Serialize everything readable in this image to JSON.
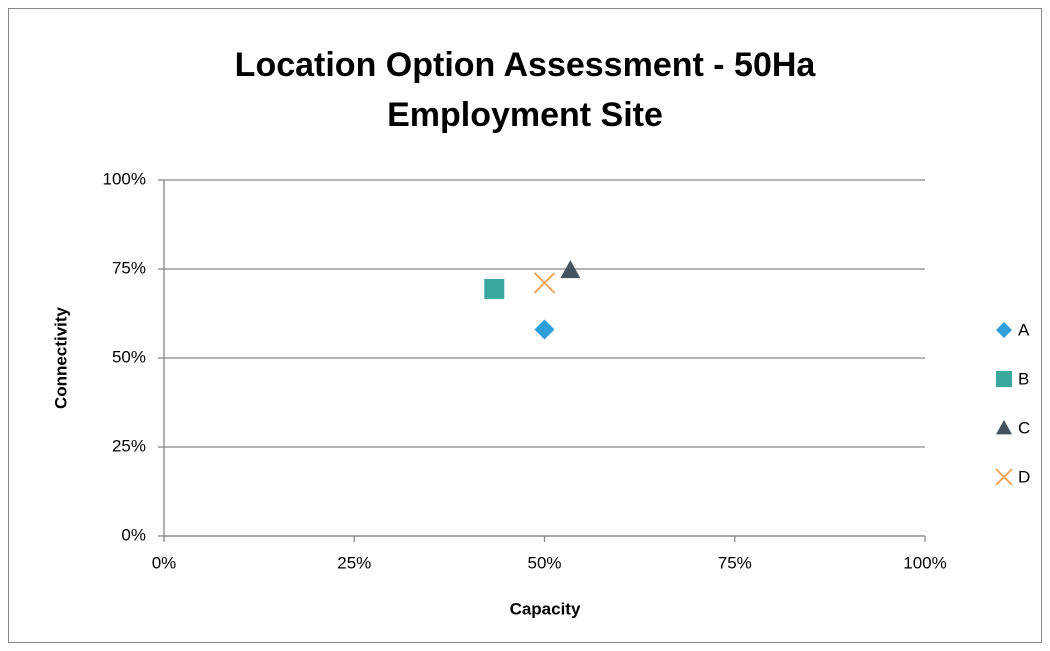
{
  "chart_data": {
    "type": "scatter",
    "title": "Location Option Assessment - 50Ha Employment Site",
    "x_label": "Capacity",
    "y_label": "Connectivity",
    "xlim": [
      0,
      100
    ],
    "ylim": [
      0,
      100
    ],
    "xticks": [
      {
        "value": 0,
        "label": "0%"
      },
      {
        "value": 25,
        "label": "25%"
      },
      {
        "value": 50,
        "label": "50%"
      },
      {
        "value": 75,
        "label": "75%"
      },
      {
        "value": 100,
        "label": "100%"
      }
    ],
    "yticks": [
      {
        "value": 0,
        "label": "0%"
      },
      {
        "value": 25,
        "label": "25%"
      },
      {
        "value": 50,
        "label": "50%"
      },
      {
        "value": 75,
        "label": "75%"
      },
      {
        "value": 100,
        "label": "100%"
      }
    ],
    "grid": true,
    "legend": "right",
    "series": [
      {
        "name": "A",
        "color": "#2e9fd8",
        "marker": "diamond",
        "x": [
          50
        ],
        "values": [
          58
        ]
      },
      {
        "name": "B",
        "color": "#3aa89c",
        "marker": "square",
        "x": [
          43.4
        ],
        "values": [
          69.4
        ]
      },
      {
        "name": "C",
        "color": "#46535e",
        "marker": "triangle",
        "x": [
          53.4
        ],
        "values": [
          74.7
        ]
      },
      {
        "name": "D",
        "color": "#f0a050",
        "marker": "x",
        "x": [
          50
        ],
        "values": [
          71.1
        ]
      }
    ]
  }
}
